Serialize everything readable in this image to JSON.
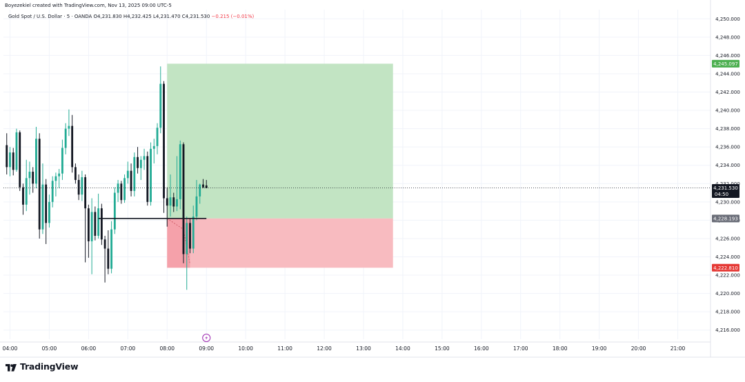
{
  "header": {
    "attribution": "Boyezekiel created with TradingView.com, Nov 13, 2025 09:00 UTC-5",
    "legend": {
      "symbol": "Gold Spot / U.S. Dollar · 5 · OANDA",
      "open": "O4,231.830",
      "high": "H4,232.425",
      "low": "L4,231.470",
      "close": "C4,231.530",
      "change": "−0.215 (−0.01%)"
    }
  },
  "branding": {
    "name": "TradingView"
  },
  "colors": {
    "up": "#22ab94",
    "down": "#131722",
    "profit_zone": "#bfe3c0",
    "loss_zone": "#f8b7bd",
    "target_tag": "#4caf50",
    "stop_tag": "#e53935",
    "entry_tag": "#6a6d78",
    "price_tag": "#131722"
  },
  "chart_data": {
    "type": "candlestick",
    "symbol": "Gold Spot / U.S. Dollar",
    "interval": "5",
    "source": "OANDA",
    "x_axis": {
      "tick_labels": [
        "04:00",
        "05:00",
        "06:00",
        "07:00",
        "08:00",
        "09:00",
        "10:00",
        "11:00",
        "12:00",
        "13:00",
        "14:00",
        "15:00",
        "16:00",
        "17:00",
        "18:00",
        "19:00",
        "20:00",
        "21:00"
      ],
      "range_minutes": [
        230,
        1310
      ]
    },
    "y_axis": {
      "tick_labels": [
        "4,216.000",
        "4,218.000",
        "4,220.000",
        "4,222.000",
        "4,224.000",
        "4,226.000",
        "4,228.000",
        "4,230.000",
        "4,232.000",
        "4,234.000",
        "4,236.000",
        "4,238.000",
        "4,240.000",
        "4,242.000",
        "4,244.000",
        "4,246.000",
        "4,248.000",
        "4,250.000"
      ],
      "ylim": [
        4215.0,
        4251.0
      ],
      "side": "right"
    },
    "candles": [
      {
        "t": "03:55",
        "o": 4236.2,
        "h": 4237.5,
        "l": 4233.0,
        "c": 4233.8
      },
      {
        "t": "04:00",
        "o": 4233.8,
        "h": 4236.0,
        "l": 4232.8,
        "c": 4235.4
      },
      {
        "t": "04:05",
        "o": 4235.4,
        "h": 4235.9,
        "l": 4232.9,
        "c": 4233.5
      },
      {
        "t": "04:10",
        "o": 4233.5,
        "h": 4238.0,
        "l": 4233.3,
        "c": 4237.6
      },
      {
        "t": "04:15",
        "o": 4237.6,
        "h": 4237.8,
        "l": 4231.2,
        "c": 4231.6
      },
      {
        "t": "04:20",
        "o": 4231.6,
        "h": 4232.0,
        "l": 4228.6,
        "c": 4229.7
      },
      {
        "t": "04:25",
        "o": 4229.7,
        "h": 4234.6,
        "l": 4229.0,
        "c": 4232.6
      },
      {
        "t": "04:30",
        "o": 4232.6,
        "h": 4234.4,
        "l": 4230.8,
        "c": 4233.3
      },
      {
        "t": "04:35",
        "o": 4233.3,
        "h": 4233.8,
        "l": 4231.0,
        "c": 4232.0
      },
      {
        "t": "04:40",
        "o": 4232.0,
        "h": 4238.2,
        "l": 4231.5,
        "c": 4236.9
      },
      {
        "t": "04:45",
        "o": 4236.9,
        "h": 4237.5,
        "l": 4226.0,
        "c": 4227.0
      },
      {
        "t": "04:50",
        "o": 4227.0,
        "h": 4234.2,
        "l": 4226.5,
        "c": 4231.9
      },
      {
        "t": "04:55",
        "o": 4231.9,
        "h": 4232.5,
        "l": 4225.4,
        "c": 4227.7
      },
      {
        "t": "05:00",
        "o": 4227.7,
        "h": 4230.8,
        "l": 4227.2,
        "c": 4230.0
      },
      {
        "t": "05:05",
        "o": 4230.0,
        "h": 4232.8,
        "l": 4229.4,
        "c": 4232.3
      },
      {
        "t": "05:10",
        "o": 4232.3,
        "h": 4233.2,
        "l": 4230.6,
        "c": 4232.8
      },
      {
        "t": "05:15",
        "o": 4232.8,
        "h": 4233.6,
        "l": 4231.5,
        "c": 4233.1
      },
      {
        "t": "05:20",
        "o": 4233.1,
        "h": 4236.8,
        "l": 4232.4,
        "c": 4235.9
      },
      {
        "t": "05:25",
        "o": 4235.9,
        "h": 4238.6,
        "l": 4235.2,
        "c": 4238.0
      },
      {
        "t": "05:30",
        "o": 4238.0,
        "h": 4240.1,
        "l": 4237.2,
        "c": 4238.3
      },
      {
        "t": "05:35",
        "o": 4238.3,
        "h": 4239.5,
        "l": 4233.2,
        "c": 4233.8
      },
      {
        "t": "05:40",
        "o": 4233.8,
        "h": 4234.2,
        "l": 4232.0,
        "c": 4232.4
      },
      {
        "t": "05:45",
        "o": 4232.4,
        "h": 4233.0,
        "l": 4230.2,
        "c": 4230.8
      },
      {
        "t": "05:50",
        "o": 4230.8,
        "h": 4233.4,
        "l": 4230.1,
        "c": 4232.7
      },
      {
        "t": "05:55",
        "o": 4232.7,
        "h": 4233.0,
        "l": 4223.4,
        "c": 4229.3
      },
      {
        "t": "06:00",
        "o": 4229.3,
        "h": 4229.7,
        "l": 4223.9,
        "c": 4225.7
      },
      {
        "t": "06:05",
        "o": 4225.7,
        "h": 4230.4,
        "l": 4222.1,
        "c": 4228.9
      },
      {
        "t": "06:10",
        "o": 4228.9,
        "h": 4229.5,
        "l": 4225.8,
        "c": 4226.3
      },
      {
        "t": "06:15",
        "o": 4226.3,
        "h": 4230.9,
        "l": 4226.0,
        "c": 4229.3
      },
      {
        "t": "06:20",
        "o": 4229.3,
        "h": 4229.8,
        "l": 4225.3,
        "c": 4225.9
      },
      {
        "t": "06:25",
        "o": 4225.9,
        "h": 4226.3,
        "l": 4221.2,
        "c": 4224.9
      },
      {
        "t": "06:30",
        "o": 4224.9,
        "h": 4226.9,
        "l": 4222.1,
        "c": 4222.7
      },
      {
        "t": "06:35",
        "o": 4222.7,
        "h": 4227.9,
        "l": 4222.2,
        "c": 4227.0
      },
      {
        "t": "06:40",
        "o": 4227.0,
        "h": 4231.6,
        "l": 4226.5,
        "c": 4231.0
      },
      {
        "t": "06:45",
        "o": 4231.0,
        "h": 4232.4,
        "l": 4230.0,
        "c": 4232.0
      },
      {
        "t": "06:50",
        "o": 4232.0,
        "h": 4232.3,
        "l": 4229.8,
        "c": 4230.2
      },
      {
        "t": "06:55",
        "o": 4230.2,
        "h": 4233.0,
        "l": 4229.9,
        "c": 4232.6
      },
      {
        "t": "07:00",
        "o": 4232.6,
        "h": 4234.4,
        "l": 4232.0,
        "c": 4233.4
      },
      {
        "t": "07:05",
        "o": 4233.4,
        "h": 4234.2,
        "l": 4230.6,
        "c": 4231.2
      },
      {
        "t": "07:10",
        "o": 4231.2,
        "h": 4235.4,
        "l": 4230.6,
        "c": 4234.9
      },
      {
        "t": "07:15",
        "o": 4234.9,
        "h": 4236.0,
        "l": 4233.1,
        "c": 4233.7
      },
      {
        "t": "07:20",
        "o": 4233.7,
        "h": 4235.0,
        "l": 4232.4,
        "c": 4234.6
      },
      {
        "t": "07:25",
        "o": 4234.6,
        "h": 4235.8,
        "l": 4233.5,
        "c": 4235.0
      },
      {
        "t": "07:30",
        "o": 4235.0,
        "h": 4235.5,
        "l": 4229.6,
        "c": 4230.0
      },
      {
        "t": "07:35",
        "o": 4230.0,
        "h": 4236.5,
        "l": 4229.6,
        "c": 4235.8
      },
      {
        "t": "07:40",
        "o": 4235.8,
        "h": 4236.9,
        "l": 4234.2,
        "c": 4236.1
      },
      {
        "t": "07:45",
        "o": 4236.1,
        "h": 4238.6,
        "l": 4235.2,
        "c": 4238.1
      },
      {
        "t": "07:50",
        "o": 4238.1,
        "h": 4244.8,
        "l": 4237.5,
        "c": 4242.9
      },
      {
        "t": "07:55",
        "o": 4242.9,
        "h": 4243.2,
        "l": 4228.8,
        "c": 4230.4
      },
      {
        "t": "08:00",
        "o": 4230.4,
        "h": 4231.6,
        "l": 4227.3,
        "c": 4229.6
      },
      {
        "t": "08:05",
        "o": 4229.6,
        "h": 4233.0,
        "l": 4228.4,
        "c": 4230.5
      },
      {
        "t": "08:10",
        "o": 4230.5,
        "h": 4231.0,
        "l": 4228.9,
        "c": 4229.5
      },
      {
        "t": "08:15",
        "o": 4229.5,
        "h": 4235.0,
        "l": 4229.0,
        "c": 4230.3
      },
      {
        "t": "08:20",
        "o": 4230.3,
        "h": 4236.7,
        "l": 4229.2,
        "c": 4236.3
      },
      {
        "t": "08:25",
        "o": 4236.3,
        "h": 4236.5,
        "l": 4223.3,
        "c": 4224.3
      },
      {
        "t": "08:30",
        "o": 4224.3,
        "h": 4228.4,
        "l": 4220.4,
        "c": 4227.7
      },
      {
        "t": "08:35",
        "o": 4227.7,
        "h": 4228.2,
        "l": 4224.4,
        "c": 4224.9
      },
      {
        "t": "08:40",
        "o": 4224.9,
        "h": 4229.6,
        "l": 4224.4,
        "c": 4228.4
      },
      {
        "t": "08:45",
        "o": 4228.4,
        "h": 4232.4,
        "l": 4228.0,
        "c": 4230.6
      },
      {
        "t": "08:50",
        "o": 4230.6,
        "h": 4232.0,
        "l": 4229.8,
        "c": 4231.9
      },
      {
        "t": "08:55",
        "o": 4231.9,
        "h": 4232.5,
        "l": 4231.5,
        "c": 4231.6
      },
      {
        "t": "09:00",
        "o": 4231.8,
        "h": 4232.4,
        "l": 4231.5,
        "c": 4231.5
      }
    ],
    "position": {
      "kind": "long",
      "start": "08:00",
      "end": "13:45",
      "target": 4245.097,
      "entry": 4228.193,
      "stop": 4222.81,
      "target_label": "4,245.097",
      "entry_label": "4,228.193",
      "stop_label": "4,222.810"
    },
    "horizontal_line": {
      "price": 4228.193,
      "from": "06:15",
      "to": "09:00"
    },
    "current_price": {
      "value": 4231.53,
      "label": "4,231.530",
      "countdown": "04:50"
    },
    "event_marker": {
      "time": "09:00",
      "icon": "lightning-icon"
    }
  }
}
